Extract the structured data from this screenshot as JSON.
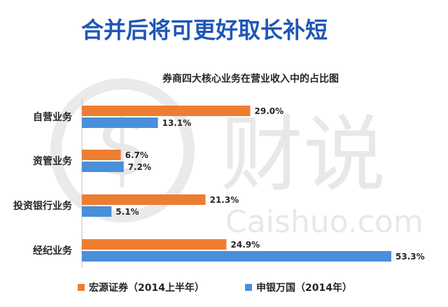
{
  "headline": "合并后将可更好取长补短",
  "watermark": {
    "cn_text": "财说",
    "en_text": "Caishuo.com"
  },
  "colors": {
    "headline": "#1f56b8",
    "series_orange": "#ed7d31",
    "series_blue": "#4a8fd9",
    "axis": "#bfbfbf",
    "text": "#262626"
  },
  "chart_data": {
    "type": "bar",
    "orientation": "horizontal",
    "title": "券商四大核心业务在营业收入中的占比图",
    "categories": [
      "自营业务",
      "资管业务",
      "投资银行业务",
      "经纪业务"
    ],
    "series": [
      {
        "name": "宏源证券（2014上半年）",
        "values": [
          29.0,
          6.7,
          21.3,
          24.9
        ],
        "labels": [
          "29.0%",
          "6.7%",
          "21.3%",
          "24.9%"
        ]
      },
      {
        "name": "申银万国（2014年）",
        "values": [
          13.1,
          7.2,
          5.1,
          53.3
        ],
        "labels": [
          "13.1%",
          "7.2%",
          "5.1%",
          "53.3%"
        ]
      }
    ],
    "value_axis": {
      "min": 0,
      "max": 53.3,
      "unit": "%"
    },
    "grid": false,
    "legend_position": "bottom"
  }
}
